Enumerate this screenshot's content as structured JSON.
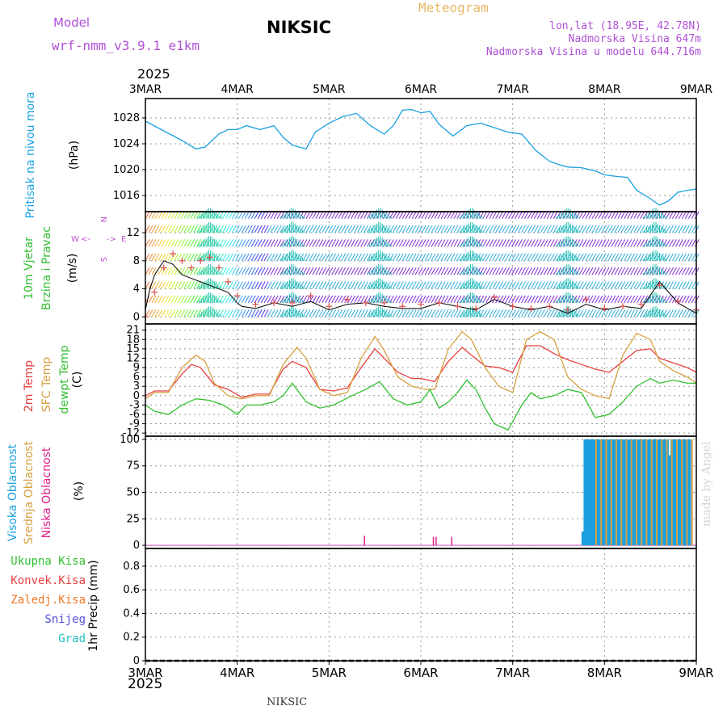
{
  "header": {
    "model_label": "Model",
    "model_name": "wrf-nmm_v3.9.1  e1km",
    "station": "NIKSIC",
    "meteogram": "Meteogram",
    "lonlat": "lon,lat (18.95E, 42.78N)",
    "elevation": "Nadmorska Visina 647m",
    "model_elevation": "Nadmorska Visina u modelu 644.716m",
    "year": "2025"
  },
  "footer": {
    "station": "NIKSIC",
    "year": "2025",
    "credit": "made by Angel"
  },
  "colors": {
    "pressure": "#1aa0e0",
    "wind_speed": "#000000",
    "t2m": "#e84040",
    "sfc": "#d8a040",
    "dewpoint": "#30c030",
    "high_cloud": "#1aa0e0",
    "mid_cloud": "#d8a040",
    "low_cloud": "#e0208a"
  },
  "chart_data": [
    {
      "type": "line",
      "panel": "pressure",
      "ylabels": [
        "Pritisak na nivou mora",
        "(hPa)"
      ],
      "x_ticks": [
        "3MAR",
        "4MAR",
        "5MAR",
        "6MAR",
        "7MAR",
        "8MAR",
        "9MAR"
      ],
      "ylim": [
        1013.5,
        1031
      ],
      "yticks": [
        1016,
        1020,
        1024,
        1028
      ],
      "series": [
        {
          "x": [
            0,
            0.2,
            0.4,
            0.55,
            0.65,
            0.8,
            0.9,
            1.0,
            1.1,
            1.25,
            1.4,
            1.5,
            1.6,
            1.75,
            1.85,
            2.0,
            2.15,
            2.3,
            2.45,
            2.6,
            2.7,
            2.8,
            2.9,
            3.0,
            3.1,
            3.2,
            3.35,
            3.5,
            3.65,
            3.8,
            3.95,
            4.1,
            4.25,
            4.4,
            4.5,
            4.6,
            4.75,
            4.9,
            5.0,
            5.1,
            5.25,
            5.35,
            5.5,
            5.6,
            5.7,
            5.8,
            5.9,
            6.0
          ],
          "y": [
            1027.5,
            1026,
            1024.5,
            1023.2,
            1023.5,
            1025.5,
            1026.2,
            1026.2,
            1026.8,
            1026.2,
            1026.8,
            1025,
            1023.8,
            1023.2,
            1025.8,
            1027.2,
            1028.2,
            1028.7,
            1026.8,
            1025.5,
            1026.8,
            1029.2,
            1029.3,
            1028.8,
            1029,
            1027,
            1025.2,
            1026.8,
            1027.2,
            1026.5,
            1025.8,
            1025.5,
            1023,
            1021.3,
            1020.8,
            1020.4,
            1020.3,
            1019.8,
            1019.2,
            1019,
            1018.8,
            1016.8,
            1015.5,
            1014.5,
            1015.2,
            1016.5,
            1016.8,
            1017
          ]
        }
      ]
    },
    {
      "type": "line",
      "panel": "wind",
      "ylabels": [
        "10m Vjetar",
        "Brzina i Pravac",
        "(m/s)"
      ],
      "compass": [
        "W",
        "<-",
        "->",
        "E",
        "N",
        "S"
      ],
      "ylim": [
        -1,
        15
      ],
      "yticks": [
        0,
        4,
        8,
        12
      ],
      "series": [
        {
          "name": "speed",
          "x": [
            0,
            0.05,
            0.1,
            0.2,
            0.3,
            0.4,
            0.5,
            0.6,
            0.7,
            0.8,
            0.9,
            1.0,
            1.05,
            1.2,
            1.4,
            1.6,
            1.8,
            2.0,
            2.2,
            2.4,
            2.6,
            2.8,
            3.0,
            3.2,
            3.4,
            3.6,
            3.8,
            4.0,
            4.2,
            4.4,
            4.6,
            4.8,
            5.0,
            5.2,
            5.4,
            5.6,
            5.8,
            6.0
          ],
          "y": [
            1,
            4,
            6,
            8,
            7.5,
            6,
            5.5,
            5,
            4.5,
            4,
            3.5,
            2,
            1.5,
            1.2,
            2,
            1.5,
            2.2,
            1,
            1.8,
            2,
            1.5,
            1.2,
            1.2,
            2,
            1.5,
            1,
            2.5,
            1.5,
            1,
            1.5,
            0.5,
            1.8,
            1,
            1.5,
            1.2,
            5,
            2,
            0.5
          ]
        },
        {
          "name": "speed-markers",
          "x": [
            0,
            0.1,
            0.2,
            0.3,
            0.4,
            0.5,
            0.6,
            0.7,
            0.8,
            0.9,
            1.0,
            1.2,
            1.4,
            1.6,
            1.8,
            2.0,
            2.2,
            2.4,
            2.6,
            2.8,
            3.0,
            3.2,
            3.4,
            3.6,
            3.8,
            4.0,
            4.2,
            4.4,
            4.6,
            4.8,
            5.0,
            5.2,
            5.4,
            5.6,
            5.8,
            6.0
          ],
          "y": [
            0,
            3.5,
            7,
            9,
            8,
            7,
            8,
            8.5,
            7,
            5,
            3,
            1.8,
            2,
            2,
            3,
            1.5,
            2.5,
            2,
            2,
            1.5,
            1.8,
            2,
            1.5,
            1.2,
            2.8,
            1.5,
            1.2,
            1.5,
            1,
            2.5,
            1.2,
            1.5,
            1.8,
            4.5,
            2.2,
            1
          ]
        }
      ]
    },
    {
      "type": "line",
      "panel": "temperature",
      "ylabels": [
        "2m Temp",
        "SFC Temp",
        "dewpt Temp",
        "(C)"
      ],
      "ylim": [
        -13,
        23
      ],
      "yticks": [
        -12,
        -9,
        -6,
        -3,
        0,
        3,
        6,
        9,
        12,
        15,
        18,
        21
      ],
      "series": [
        {
          "name": "2m Temp",
          "x": [
            0,
            0.1,
            0.25,
            0.4,
            0.5,
            0.6,
            0.75,
            0.9,
            1.05,
            1.2,
            1.35,
            1.5,
            1.6,
            1.75,
            1.9,
            2.05,
            2.2,
            2.35,
            2.5,
            2.6,
            2.75,
            2.9,
            3.0,
            3.15,
            3.3,
            3.45,
            3.55,
            3.7,
            3.85,
            4.0,
            4.15,
            4.3,
            4.45,
            4.6,
            4.75,
            4.9,
            5.05,
            5.2,
            5.35,
            5.5,
            5.6,
            5.75,
            5.9,
            6.0
          ],
          "y": [
            0,
            1.5,
            1.5,
            7,
            10,
            9,
            3.5,
            2,
            -0.5,
            0.5,
            0.5,
            8.5,
            11,
            9,
            2,
            1.5,
            2.5,
            9,
            15,
            12,
            7.5,
            5.5,
            5.5,
            4.5,
            11,
            15.5,
            13,
            9.5,
            9,
            7.5,
            16,
            16,
            13.5,
            11.5,
            10,
            8.5,
            7.5,
            11,
            14.5,
            15,
            12,
            10.5,
            9,
            7.5
          ]
        },
        {
          "name": "SFC Temp",
          "x": [
            0,
            0.1,
            0.25,
            0.4,
            0.55,
            0.65,
            0.75,
            0.9,
            1.05,
            1.2,
            1.35,
            1.5,
            1.65,
            1.75,
            1.9,
            2.05,
            2.2,
            2.35,
            2.5,
            2.6,
            2.75,
            2.9,
            3.05,
            3.15,
            3.3,
            3.45,
            3.55,
            3.7,
            3.85,
            4.0,
            4.15,
            4.3,
            4.45,
            4.6,
            4.75,
            4.9,
            5.05,
            5.2,
            5.35,
            5.5,
            5.6,
            5.75,
            5.9,
            6.0
          ],
          "y": [
            -1,
            1,
            1,
            9,
            13,
            11,
            4,
            0,
            -1,
            0,
            0,
            10,
            15.5,
            12,
            2,
            0,
            1,
            12,
            19,
            14.5,
            6,
            3,
            2,
            2,
            15,
            20.5,
            18,
            9,
            3,
            1,
            18,
            20.5,
            18,
            6,
            2,
            0,
            -1,
            13,
            20,
            18,
            11,
            8,
            6,
            4
          ]
        },
        {
          "name": "dewpt Temp",
          "x": [
            0,
            0.1,
            0.25,
            0.4,
            0.55,
            0.7,
            0.85,
            1.0,
            1.1,
            1.25,
            1.4,
            1.5,
            1.6,
            1.75,
            1.9,
            2.05,
            2.25,
            2.4,
            2.55,
            2.7,
            2.85,
            3.0,
            3.1,
            3.2,
            3.3,
            3.4,
            3.5,
            3.6,
            3.7,
            3.8,
            3.95,
            4.1,
            4.2,
            4.3,
            4.45,
            4.6,
            4.75,
            4.9,
            5.05,
            5.2,
            5.35,
            5.5,
            5.6,
            5.75,
            5.9,
            6.0
          ],
          "y": [
            -3,
            -5,
            -6,
            -3,
            -1,
            -1.5,
            -3,
            -6,
            -3,
            -3,
            -2,
            0,
            4,
            -2,
            -4,
            -3,
            0,
            2,
            4.5,
            -1,
            -3,
            -2,
            2,
            -4,
            -2,
            1,
            5,
            2,
            -4,
            -9,
            -11,
            -3,
            1,
            -1,
            0,
            2,
            1,
            -7,
            -6,
            -2,
            3,
            5.5,
            4,
            5,
            4,
            4
          ]
        }
      ]
    },
    {
      "type": "bar",
      "panel": "cloud",
      "ylabels": [
        "Visoka Oblacnost",
        "Srednja Oblacnost",
        "Niska Oblacnost",
        "(%)"
      ],
      "ylim": [
        -3,
        103
      ],
      "yticks": [
        0,
        25,
        50,
        75,
        100
      ],
      "series": [
        {
          "name": "Visoka Oblacnost",
          "x_start": 4.75,
          "x_end": 5.92,
          "step": 0.022,
          "value": 100,
          "first_value": 13,
          "dip": {
            "x": 5.7,
            "value": 85
          }
        },
        {
          "name": "Srednja Oblacnost",
          "x_start": 4.9,
          "x_end": 5.98,
          "step": 0.055,
          "value": 100
        },
        {
          "name": "Niska Oblacnost",
          "x": [
            2.38,
            3.13,
            3.16,
            3.33
          ],
          "values": [
            9,
            8,
            8,
            8
          ]
        }
      ]
    },
    {
      "type": "bar",
      "panel": "precip",
      "legend": [
        "Ukupna Kisa",
        "Konvek.Kisa",
        "Zaledj.Kisa",
        "Snijeg",
        "Grad"
      ],
      "ylabel": "1hr Precip (mm)",
      "ylim": [
        0,
        0.95
      ],
      "yticks": [
        0,
        0.2,
        0.4,
        0.6,
        0.8
      ],
      "yticklabels": [
        "0",
        "0.2",
        "0.4",
        "0.6",
        "0.8"
      ],
      "series": []
    }
  ]
}
